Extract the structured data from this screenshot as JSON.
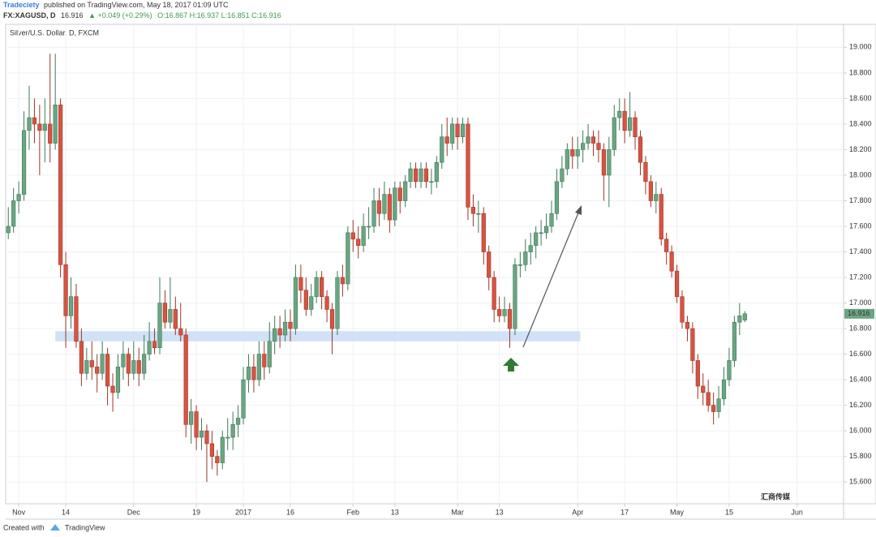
{
  "header": {
    "author": "Tradeciety",
    "published": "published on TradingView.com, May 18, 2017 01:09 UTC",
    "symbol": "FX:XAGUSD, D",
    "last": "16.916",
    "change": "▲ +0.049 (+0.29%)",
    "ohlc": "O:16.867 H:16.937 L:16.851 C:16.916"
  },
  "footer": {
    "created": "Created with",
    "brand": "TradingView",
    "watermark": "汇商传媒"
  },
  "chart_data": {
    "type": "candlestick",
    "title": "Silver/U.S. Dollar, D, FXCM",
    "up_color": "#6ba583",
    "down_color": "#d75442",
    "grid": true,
    "ylim": [
      15.43,
      19.18
    ],
    "yticks": [
      {
        "value": 15.6,
        "label": "15.600"
      },
      {
        "value": 15.8,
        "label": "15.800"
      },
      {
        "value": 16,
        "label": "16.000"
      },
      {
        "value": 16.2,
        "label": "16.200"
      },
      {
        "value": 16.4,
        "label": "16.400"
      },
      {
        "value": 16.6,
        "label": "16.600"
      },
      {
        "value": 16.8,
        "label": "16.800"
      },
      {
        "value": 17,
        "label": "17.000"
      },
      {
        "value": 17.2,
        "label": "17.200"
      },
      {
        "value": 17.4,
        "label": "17.400"
      },
      {
        "value": 17.6,
        "label": "17.600"
      },
      {
        "value": 17.8,
        "label": "17.800"
      },
      {
        "value": 18,
        "label": "18.000"
      },
      {
        "value": 18.2,
        "label": "18.200"
      },
      {
        "value": 18.4,
        "label": "18.400"
      },
      {
        "value": 18.6,
        "label": "18.600"
      },
      {
        "value": 18.8,
        "label": "18.800"
      },
      {
        "value": 19,
        "label": "19.000"
      }
    ],
    "xlim": [
      -0.5,
      159.9
    ],
    "xticks": [
      {
        "value": 2,
        "label": "Nov"
      },
      {
        "value": 11,
        "label": "14"
      },
      {
        "value": 24,
        "label": "Dec"
      },
      {
        "value": 36,
        "label": "19"
      },
      {
        "value": 45,
        "label": "2017"
      },
      {
        "value": 54,
        "label": "16"
      },
      {
        "value": 66,
        "label": "Feb"
      },
      {
        "value": 74,
        "label": "13"
      },
      {
        "value": 86,
        "label": "Mar"
      },
      {
        "value": 94,
        "label": "13"
      },
      {
        "value": 109,
        "label": "Apr"
      },
      {
        "value": 118,
        "label": "17"
      },
      {
        "value": 128,
        "label": "May"
      },
      {
        "value": 138,
        "label": "15"
      },
      {
        "value": 151,
        "label": "Jun"
      }
    ],
    "support_zone": {
      "ylim": [
        16.7,
        16.78
      ],
      "xlim": [
        9,
        109.5
      ]
    },
    "candles": [
      [
        17.55,
        17.75,
        17.5,
        17.6
      ],
      [
        17.6,
        17.9,
        17.55,
        17.8
      ],
      [
        17.8,
        17.95,
        17.7,
        17.85
      ],
      [
        17.85,
        18.5,
        17.8,
        18.35
      ],
      [
        18.35,
        18.7,
        18.2,
        18.45
      ],
      [
        18.45,
        18.6,
        18.25,
        18.4
      ],
      [
        18.4,
        18.55,
        18.0,
        18.35
      ],
      [
        18.35,
        18.6,
        18.1,
        18.4
      ],
      [
        18.4,
        18.95,
        18.1,
        18.25
      ],
      [
        18.25,
        18.95,
        18.2,
        18.55
      ],
      [
        18.55,
        18.6,
        17.2,
        17.3
      ],
      [
        17.3,
        17.4,
        16.65,
        16.9
      ],
      [
        16.9,
        17.2,
        16.8,
        17.05
      ],
      [
        17.05,
        17.15,
        16.65,
        16.7
      ],
      [
        16.7,
        16.8,
        16.35,
        16.45
      ],
      [
        16.45,
        16.65,
        16.4,
        16.55
      ],
      [
        16.55,
        16.7,
        16.4,
        16.5
      ],
      [
        16.5,
        16.6,
        16.3,
        16.45
      ],
      [
        16.45,
        16.7,
        16.4,
        16.6
      ],
      [
        16.6,
        16.65,
        16.2,
        16.35
      ],
      [
        16.35,
        16.45,
        16.15,
        16.3
      ],
      [
        16.3,
        16.6,
        16.25,
        16.5
      ],
      [
        16.5,
        16.7,
        16.4,
        16.6
      ],
      [
        16.6,
        16.65,
        16.35,
        16.45
      ],
      [
        16.45,
        16.7,
        16.4,
        16.55
      ],
      [
        16.55,
        16.65,
        16.35,
        16.45
      ],
      [
        16.45,
        16.75,
        16.4,
        16.6
      ],
      [
        16.6,
        16.85,
        16.55,
        16.7
      ],
      [
        16.7,
        16.8,
        16.6,
        16.65
      ],
      [
        16.65,
        17.2,
        16.6,
        17.0
      ],
      [
        17.0,
        17.1,
        16.8,
        16.85
      ],
      [
        16.85,
        17.2,
        16.8,
        16.95
      ],
      [
        16.95,
        17.05,
        16.75,
        16.8
      ],
      [
        16.8,
        17.0,
        16.7,
        16.75
      ],
      [
        16.75,
        16.8,
        15.95,
        16.05
      ],
      [
        16.05,
        16.25,
        15.9,
        16.15
      ],
      [
        16.15,
        16.2,
        15.85,
        15.95
      ],
      [
        15.95,
        16.1,
        15.85,
        16.0
      ],
      [
        16.0,
        16.05,
        15.6,
        15.9
      ],
      [
        15.9,
        16.0,
        15.7,
        15.8
      ],
      [
        15.8,
        15.85,
        15.65,
        15.75
      ],
      [
        15.75,
        16.0,
        15.7,
        15.95
      ],
      [
        15.95,
        16.1,
        15.85,
        15.95
      ],
      [
        15.95,
        16.15,
        15.85,
        16.05
      ],
      [
        16.05,
        16.2,
        15.95,
        16.1
      ],
      [
        16.1,
        16.5,
        16.05,
        16.4
      ],
      [
        16.4,
        16.6,
        16.3,
        16.5
      ],
      [
        16.5,
        16.6,
        16.3,
        16.4
      ],
      [
        16.4,
        16.7,
        16.35,
        16.6
      ],
      [
        16.6,
        16.7,
        16.4,
        16.5
      ],
      [
        16.5,
        16.85,
        16.45,
        16.7
      ],
      [
        16.7,
        16.9,
        16.6,
        16.8
      ],
      [
        16.8,
        16.9,
        16.65,
        16.75
      ],
      [
        16.75,
        16.95,
        16.7,
        16.85
      ],
      [
        16.85,
        16.95,
        16.7,
        16.8
      ],
      [
        16.8,
        17.3,
        16.75,
        17.2
      ],
      [
        17.2,
        17.3,
        17.0,
        17.1
      ],
      [
        17.1,
        17.2,
        16.9,
        16.95
      ],
      [
        16.95,
        17.15,
        16.9,
        17.05
      ],
      [
        17.05,
        17.25,
        17.0,
        17.2
      ],
      [
        17.2,
        17.25,
        16.95,
        17.05
      ],
      [
        17.05,
        17.1,
        16.85,
        16.95
      ],
      [
        16.95,
        17.0,
        16.6,
        16.8
      ],
      [
        16.8,
        17.25,
        16.75,
        17.2
      ],
      [
        17.2,
        17.3,
        17.05,
        17.15
      ],
      [
        17.15,
        17.6,
        17.1,
        17.55
      ],
      [
        17.55,
        17.65,
        17.4,
        17.5
      ],
      [
        17.5,
        17.6,
        17.35,
        17.45
      ],
      [
        17.45,
        17.7,
        17.4,
        17.6
      ],
      [
        17.6,
        17.75,
        17.5,
        17.6
      ],
      [
        17.6,
        17.9,
        17.55,
        17.8
      ],
      [
        17.8,
        17.9,
        17.6,
        17.7
      ],
      [
        17.7,
        17.95,
        17.65,
        17.85
      ],
      [
        17.85,
        17.9,
        17.55,
        17.65
      ],
      [
        17.65,
        17.95,
        17.6,
        17.9
      ],
      [
        17.9,
        17.95,
        17.7,
        17.8
      ],
      [
        17.8,
        18.0,
        17.75,
        17.95
      ],
      [
        17.95,
        18.1,
        17.9,
        18.05
      ],
      [
        18.05,
        18.1,
        17.9,
        17.95
      ],
      [
        17.95,
        18.1,
        17.9,
        18.05
      ],
      [
        18.05,
        18.1,
        17.9,
        17.95
      ],
      [
        17.95,
        18.05,
        17.85,
        17.95
      ],
      [
        17.95,
        18.15,
        17.9,
        18.1
      ],
      [
        18.1,
        18.4,
        18.05,
        18.3
      ],
      [
        18.3,
        18.45,
        18.15,
        18.25
      ],
      [
        18.25,
        18.45,
        18.2,
        18.4
      ],
      [
        18.4,
        18.45,
        18.2,
        18.3
      ],
      [
        18.3,
        18.45,
        18.25,
        18.4
      ],
      [
        18.4,
        18.45,
        17.65,
        17.75
      ],
      [
        17.75,
        17.85,
        17.6,
        17.7
      ],
      [
        17.7,
        17.8,
        17.55,
        17.7
      ],
      [
        17.7,
        17.75,
        17.3,
        17.4
      ],
      [
        17.4,
        17.45,
        17.1,
        17.2
      ],
      [
        17.2,
        17.25,
        16.85,
        16.95
      ],
      [
        16.95,
        17.05,
        16.85,
        16.9
      ],
      [
        16.9,
        17.05,
        16.85,
        16.95
      ],
      [
        16.95,
        17.0,
        16.65,
        16.8
      ],
      [
        16.8,
        17.35,
        16.75,
        17.3
      ],
      [
        17.3,
        17.4,
        17.2,
        17.3
      ],
      [
        17.3,
        17.5,
        17.25,
        17.4
      ],
      [
        17.4,
        17.55,
        17.3,
        17.45
      ],
      [
        17.45,
        17.6,
        17.35,
        17.55
      ],
      [
        17.55,
        17.65,
        17.45,
        17.55
      ],
      [
        17.55,
        17.7,
        17.5,
        17.6
      ],
      [
        17.6,
        17.8,
        17.55,
        17.7
      ],
      [
        17.7,
        18.05,
        17.65,
        17.95
      ],
      [
        17.95,
        18.15,
        17.9,
        18.05
      ],
      [
        18.05,
        18.25,
        18.0,
        18.2
      ],
      [
        18.2,
        18.3,
        18.05,
        18.15
      ],
      [
        18.15,
        18.3,
        18.05,
        18.2
      ],
      [
        18.2,
        18.35,
        18.1,
        18.25
      ],
      [
        18.25,
        18.4,
        18.2,
        18.3
      ],
      [
        18.3,
        18.35,
        18.15,
        18.25
      ],
      [
        18.25,
        18.35,
        18.1,
        18.2
      ],
      [
        18.2,
        18.25,
        17.8,
        18.0
      ],
      [
        18.0,
        18.3,
        17.75,
        18.2
      ],
      [
        18.2,
        18.55,
        18.15,
        18.45
      ],
      [
        18.45,
        18.6,
        18.35,
        18.5
      ],
      [
        18.5,
        18.6,
        18.25,
        18.35
      ],
      [
        18.35,
        18.65,
        18.3,
        18.45
      ],
      [
        18.45,
        18.5,
        18.2,
        18.3
      ],
      [
        18.3,
        18.35,
        18.0,
        18.1
      ],
      [
        18.1,
        18.15,
        17.85,
        17.95
      ],
      [
        17.95,
        18.0,
        17.75,
        17.8
      ],
      [
        17.8,
        17.95,
        17.7,
        17.85
      ],
      [
        17.85,
        17.9,
        17.45,
        17.5
      ],
      [
        17.5,
        17.55,
        17.3,
        17.4
      ],
      [
        17.4,
        17.45,
        17.2,
        17.25
      ],
      [
        17.25,
        17.3,
        17.0,
        17.05
      ],
      [
        17.05,
        17.1,
        16.8,
        16.85
      ],
      [
        16.85,
        16.9,
        16.7,
        16.8
      ],
      [
        16.8,
        16.85,
        16.45,
        16.55
      ],
      [
        16.55,
        16.6,
        16.25,
        16.35
      ],
      [
        16.35,
        16.45,
        16.2,
        16.3
      ],
      [
        16.3,
        16.4,
        16.15,
        16.2
      ],
      [
        16.2,
        16.3,
        16.05,
        16.15
      ],
      [
        16.15,
        16.35,
        16.1,
        16.25
      ],
      [
        16.25,
        16.5,
        16.2,
        16.4
      ],
      [
        16.4,
        16.65,
        16.35,
        16.55
      ],
      [
        16.55,
        16.9,
        16.5,
        16.85
      ],
      [
        16.85,
        17.0,
        16.75,
        16.9
      ],
      [
        16.867,
        16.937,
        16.851,
        16.916
      ]
    ]
  }
}
